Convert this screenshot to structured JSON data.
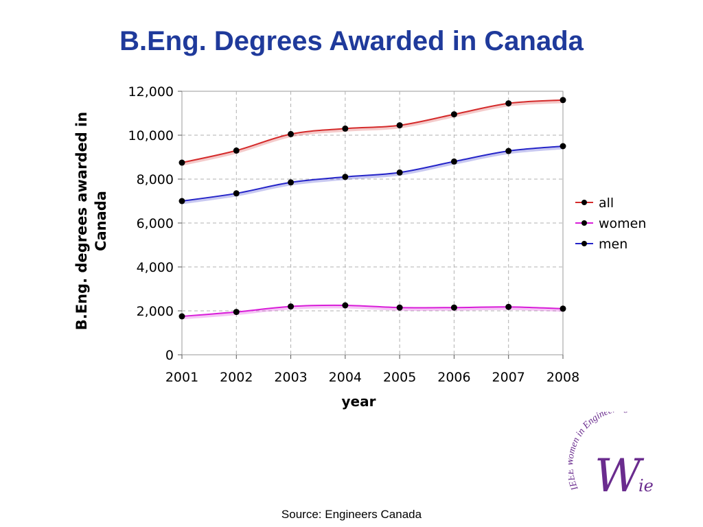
{
  "slide": {
    "title": "B.Eng. Degrees Awarded in Canada",
    "source": "Source: Engineers Canada"
  },
  "logo": {
    "arc_text": "IEEE Women in Engineering",
    "monogram_big": "W",
    "monogram_small": "ie",
    "color": "#6a2c8e"
  },
  "chart_data": {
    "type": "line",
    "x": [
      2001,
      2002,
      2003,
      2004,
      2005,
      2006,
      2007,
      2008
    ],
    "xlabel": "year",
    "ylabel": "B.Eng. degrees awarded in Canada",
    "ylim": [
      0,
      12000
    ],
    "yticks": [
      0,
      2000,
      4000,
      6000,
      8000,
      10000,
      12000
    ],
    "ytick_labels": [
      "0",
      "2,000",
      "4,000",
      "6,000",
      "8,000",
      "10,000",
      "12,000"
    ],
    "grid": true,
    "legend_position": "right",
    "series": [
      {
        "name": "all",
        "color": "#d42a2a",
        "values": [
          8750,
          9300,
          10050,
          10300,
          10450,
          10950,
          11450,
          11600
        ]
      },
      {
        "name": "women",
        "color": "#d81cd8",
        "values": [
          1750,
          1950,
          2200,
          2250,
          2150,
          2150,
          2180,
          2100
        ]
      },
      {
        "name": "men",
        "color": "#2424c8",
        "values": [
          7000,
          7350,
          7850,
          8100,
          8300,
          8800,
          9280,
          9500
        ]
      }
    ]
  }
}
